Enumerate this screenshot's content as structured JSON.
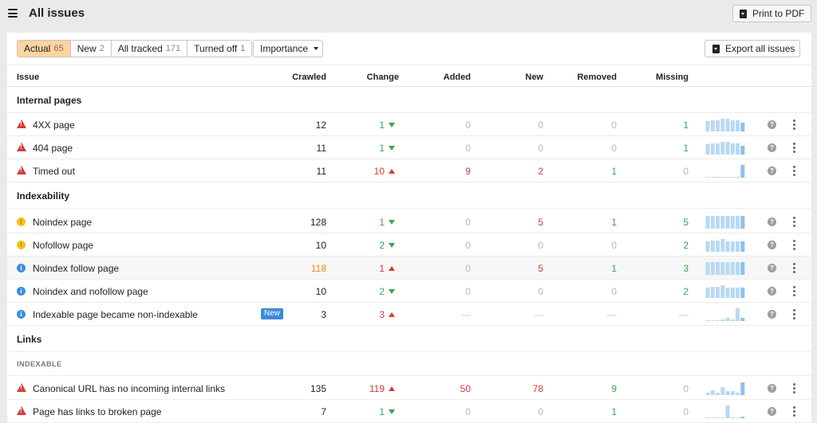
{
  "header": {
    "title": "All issues",
    "print_label": "Print to PDF"
  },
  "filters": {
    "tabs": [
      {
        "label": "Actual",
        "count": "65",
        "active": true
      },
      {
        "label": "New",
        "count": "2",
        "active": false
      },
      {
        "label": "All tracked",
        "count": "171",
        "active": false
      },
      {
        "label": "Turned off",
        "count": "1",
        "active": false
      }
    ],
    "importance_label": "Importance",
    "export_label": "Export all issues"
  },
  "columns": {
    "issue": "Issue",
    "crawled": "Crawled",
    "change": "Change",
    "added": "Added",
    "new": "New",
    "removed": "Removed",
    "missing": "Missing"
  },
  "sections": [
    {
      "title": "Internal pages"
    },
    {
      "title": "Indexability"
    },
    {
      "title": "Links",
      "subsection": "INDEXABLE"
    }
  ],
  "colors": {
    "error": "#d83a3a",
    "warning": "#f2c31a",
    "notice": "#3c8fdb",
    "up": "#d63b3b",
    "down": "#3aa451",
    "spark": "#b9d9f2",
    "active_tab": "#fdd4a3",
    "new_badge": "#3a8ad8"
  },
  "rows": [
    {
      "severity": "error",
      "name": "4XX page",
      "crawled": "12",
      "change": "1",
      "change_dir": "down",
      "added": "0",
      "new": "0",
      "removed": "0",
      "missing": "1",
      "spark": [
        8,
        9,
        9,
        10,
        10,
        9,
        9,
        7
      ]
    },
    {
      "severity": "error",
      "name": "404 page",
      "crawled": "11",
      "change": "1",
      "change_dir": "down",
      "added": "0",
      "new": "0",
      "removed": "0",
      "missing": "1",
      "spark": [
        8,
        9,
        9,
        10,
        10,
        9,
        9,
        7
      ]
    },
    {
      "severity": "error",
      "name": "Timed out",
      "crawled": "11",
      "change": "10",
      "change_dir": "up",
      "added": "9",
      "new": "2",
      "removed": "1",
      "missing": "0",
      "spark": [
        0,
        0,
        0,
        0,
        0,
        0,
        0,
        10
      ]
    },
    {
      "severity": "warning",
      "name": "Noindex page",
      "crawled": "128",
      "change": "1",
      "change_dir": "down",
      "added": "0",
      "new": "5",
      "removed": "1",
      "missing": "5",
      "spark": [
        10,
        10,
        10,
        10,
        10,
        10,
        10,
        10
      ]
    },
    {
      "severity": "warning",
      "name": "Nofollow page",
      "crawled": "10",
      "change": "2",
      "change_dir": "down",
      "added": "0",
      "new": "0",
      "removed": "0",
      "missing": "2",
      "spark": [
        8,
        9,
        9,
        10,
        8,
        8,
        8,
        8
      ]
    },
    {
      "severity": "info",
      "name": "Noindex follow page",
      "crawled": "118",
      "change": "1",
      "change_dir": "up",
      "added": "0",
      "new": "5",
      "removed": "1",
      "missing": "3",
      "spark": [
        10,
        10,
        10,
        10,
        10,
        10,
        10,
        10
      ],
      "highlight": true
    },
    {
      "severity": "info",
      "name": "Noindex and nofollow page",
      "crawled": "10",
      "change": "2",
      "change_dir": "down",
      "added": "0",
      "new": "0",
      "removed": "0",
      "missing": "2",
      "spark": [
        8,
        9,
        9,
        10,
        8,
        8,
        8,
        8
      ]
    },
    {
      "severity": "info",
      "name": "Indexable page became non-indexable",
      "badge": "New",
      "crawled": "3",
      "change": "3",
      "change_dir": "up",
      "added": "—",
      "new": "—",
      "removed": "—",
      "missing": "—",
      "spark": [
        0,
        0,
        0,
        1,
        2,
        1,
        9,
        2
      ]
    },
    {
      "severity": "error",
      "name": "Canonical URL has no incoming internal links",
      "crawled": "135",
      "change": "119",
      "change_dir": "up",
      "added": "50",
      "new": "78",
      "removed": "9",
      "missing": "0",
      "spark": [
        2,
        4,
        2,
        6,
        3,
        3,
        2,
        10
      ]
    },
    {
      "severity": "error",
      "name": "Page has links to broken page",
      "crawled": "7",
      "change": "1",
      "change_dir": "down",
      "added": "0",
      "new": "0",
      "removed": "1",
      "missing": "0",
      "spark": [
        0,
        0,
        0,
        0,
        10,
        0,
        0,
        1
      ]
    }
  ]
}
